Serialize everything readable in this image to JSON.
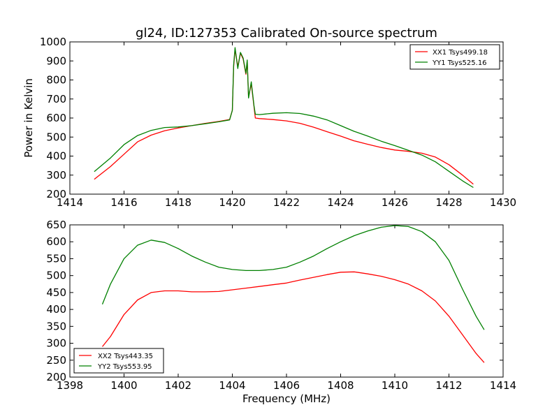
{
  "chart_data": [
    {
      "type": "line",
      "title": "gl24, ID:127353 Calibrated On-source spectrum",
      "xlabel": "",
      "ylabel": "Power in Kelvin",
      "xlim": [
        1414,
        1430
      ],
      "ylim": [
        200,
        1000
      ],
      "xticks": [
        1414,
        1416,
        1418,
        1420,
        1422,
        1424,
        1426,
        1428,
        1430
      ],
      "yticks": [
        200,
        300,
        400,
        500,
        600,
        700,
        800,
        900,
        1000
      ],
      "legend_position": "top-right",
      "series": [
        {
          "name": "XX1 Tsys499.18",
          "color": "#ff0000",
          "x": [
            1414.9,
            1415.5,
            1416,
            1416.5,
            1417,
            1417.5,
            1418,
            1418.5,
            1419,
            1419.5,
            1419.9,
            1420.0,
            1420.05,
            1420.1,
            1420.2,
            1420.3,
            1420.4,
            1420.5,
            1420.55,
            1420.6,
            1420.7,
            1420.8,
            1420.85,
            1421,
            1421.5,
            1422,
            1422.5,
            1423,
            1423.5,
            1424,
            1424.5,
            1425,
            1425.5,
            1426,
            1426.5,
            1427,
            1427.5,
            1428,
            1428.5,
            1428.9
          ],
          "y": [
            278,
            345,
            410,
            475,
            510,
            533,
            548,
            560,
            572,
            582,
            592,
            640,
            870,
            960,
            870,
            940,
            910,
            830,
            900,
            710,
            780,
            660,
            600,
            597,
            592,
            585,
            572,
            552,
            528,
            505,
            480,
            462,
            445,
            432,
            425,
            415,
            395,
            355,
            300,
            252
          ]
        },
        {
          "name": "YY1 Tsys525.16",
          "color": "#008000",
          "x": [
            1414.9,
            1415.5,
            1416,
            1416.5,
            1417,
            1417.5,
            1418,
            1418.5,
            1419,
            1419.5,
            1419.9,
            1420.0,
            1420.05,
            1420.1,
            1420.2,
            1420.3,
            1420.4,
            1420.5,
            1420.55,
            1420.6,
            1420.7,
            1420.8,
            1420.85,
            1421,
            1421.5,
            1422,
            1422.5,
            1423,
            1423.5,
            1424,
            1424.5,
            1425,
            1425.5,
            1426,
            1426.5,
            1427,
            1427.5,
            1428,
            1428.5,
            1428.9
          ],
          "y": [
            318,
            390,
            460,
            508,
            535,
            550,
            553,
            560,
            570,
            580,
            590,
            640,
            880,
            970,
            860,
            945,
            915,
            835,
            905,
            705,
            790,
            665,
            620,
            618,
            625,
            628,
            624,
            610,
            590,
            560,
            530,
            505,
            478,
            455,
            430,
            405,
            370,
            320,
            270,
            235
          ]
        }
      ]
    },
    {
      "type": "line",
      "title": "",
      "xlabel": "Frequency (MHz)",
      "ylabel": "",
      "xlim": [
        1398,
        1414
      ],
      "ylim": [
        200,
        650
      ],
      "xticks": [
        1398,
        1400,
        1402,
        1404,
        1406,
        1408,
        1410,
        1412,
        1414
      ],
      "yticks": [
        200,
        250,
        300,
        350,
        400,
        450,
        500,
        550,
        600,
        650
      ],
      "legend_position": "bottom-left",
      "series": [
        {
          "name": "XX2 Tsys443.35",
          "color": "#ff0000",
          "x": [
            1399.2,
            1399.5,
            1400,
            1400.5,
            1401,
            1401.5,
            1402,
            1402.5,
            1403,
            1403.5,
            1404,
            1404.5,
            1405,
            1405.5,
            1406,
            1406.5,
            1407,
            1407.5,
            1408,
            1408.5,
            1409,
            1409.5,
            1410,
            1410.5,
            1411,
            1411.5,
            1412,
            1412.5,
            1413,
            1413.3
          ],
          "y": [
            290,
            320,
            385,
            428,
            450,
            455,
            455,
            452,
            452,
            453,
            458,
            463,
            468,
            473,
            478,
            487,
            495,
            503,
            510,
            511,
            505,
            498,
            488,
            475,
            455,
            425,
            380,
            325,
            270,
            243
          ]
        },
        {
          "name": "YY2 Tsys553.95",
          "color": "#008000",
          "x": [
            1399.2,
            1399.5,
            1400,
            1400.5,
            1401,
            1401.5,
            1402,
            1402.5,
            1403,
            1403.5,
            1404,
            1404.5,
            1405,
            1405.5,
            1406,
            1406.5,
            1407,
            1407.5,
            1408,
            1408.5,
            1409,
            1409.5,
            1410,
            1410.5,
            1411,
            1411.5,
            1412,
            1412.5,
            1413,
            1413.3
          ],
          "y": [
            415,
            475,
            550,
            590,
            605,
            598,
            580,
            558,
            540,
            525,
            518,
            515,
            515,
            518,
            525,
            540,
            558,
            580,
            600,
            618,
            632,
            643,
            648,
            645,
            630,
            600,
            545,
            460,
            380,
            340
          ]
        }
      ]
    }
  ]
}
